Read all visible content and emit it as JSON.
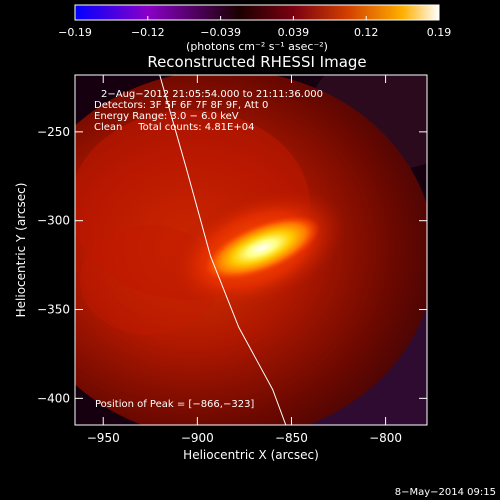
{
  "colorbar": {
    "ticks": [
      "-0.19",
      "-0.12",
      "-0.039",
      "0.039",
      "0.12",
      "0.19"
    ],
    "unit_label": "(photons cm⁻² s⁻¹ asec⁻²)",
    "range": [
      -0.19,
      0.19
    ],
    "gradient_colors": [
      "#0000ff",
      "#8a00c8",
      "#1a0000",
      "#7a0010",
      "#d24000",
      "#ffb000",
      "#ffffff"
    ]
  },
  "chart_data": {
    "type": "heatmap",
    "title": "Reconstructed RHESSI Image",
    "xlabel": "Heliocentric X (arcsec)",
    "ylabel": "Heliocentric Y (arcsec)",
    "xlim": [
      -965,
      -778
    ],
    "ylim": [
      -415,
      -218
    ],
    "x_ticks": [
      -950,
      -900,
      -850,
      -800
    ],
    "y_ticks": [
      -250,
      -300,
      -350,
      -400
    ],
    "x_tick_labels": [
      "−950",
      "−900",
      "−850",
      "−800"
    ],
    "y_tick_labels": [
      "−250",
      "−300",
      "−350",
      "−400"
    ],
    "peak": [
      -866,
      -323
    ],
    "annotations": [
      "2−Aug−2012 21:05:54.000 to 21:11:36.000",
      "Detectors: 3F 5F 6F 7F 8F 9F, Att 0",
      "Energy Range: 3.0 − 6.0 keV",
      "Clean     Total counts: 4.81E+04"
    ],
    "peak_label": "Position of Peak = [−866,−323]",
    "limb_curve": [
      [
        -920,
        -218
      ],
      [
        -906,
        -270
      ],
      [
        -893,
        -320
      ],
      [
        -878,
        -360
      ],
      [
        -860,
        -395
      ],
      [
        -853,
        -415
      ]
    ]
  },
  "footer": {
    "timestamp": "8−May−2014 09:15"
  }
}
